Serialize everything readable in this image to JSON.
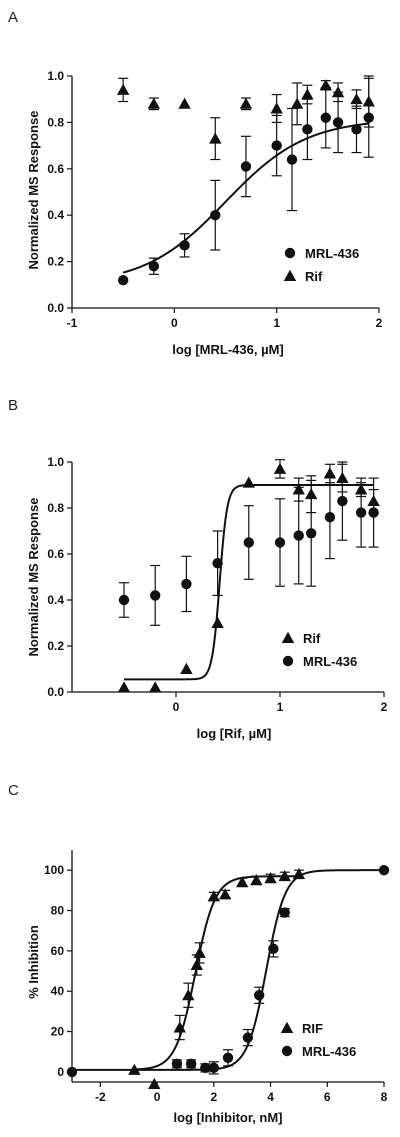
{
  "chart_data": [
    {
      "type": "scatter",
      "panel": "A",
      "xlabel": "log [MRL-436, µM]",
      "ylabel": "Normalized MS Response",
      "xlim": [
        -1,
        2
      ],
      "ylim": [
        0,
        1.0
      ],
      "xticks": [
        "-1",
        "0",
        "1",
        "2"
      ],
      "yticks": [
        "0.0",
        "0.2",
        "0.4",
        "0.6",
        "0.8",
        "1.0"
      ],
      "legend_position": "bottom-right",
      "series": [
        {
          "name": "MRL-436",
          "marker": "circle",
          "points": [
            {
              "x": -0.5,
              "y": 0.12,
              "err": 0.0
            },
            {
              "x": -0.2,
              "y": 0.18,
              "err": 0.035
            },
            {
              "x": 0.1,
              "y": 0.27,
              "err": 0.05
            },
            {
              "x": 0.4,
              "y": 0.4,
              "err": 0.15
            },
            {
              "x": 0.7,
              "y": 0.61,
              "err": 0.13
            },
            {
              "x": 1.0,
              "y": 0.7,
              "err": 0.13
            },
            {
              "x": 1.15,
              "y": 0.64,
              "err": 0.22
            },
            {
              "x": 1.3,
              "y": 0.77,
              "err": 0.13
            },
            {
              "x": 1.48,
              "y": 0.82,
              "err": 0.13
            },
            {
              "x": 1.6,
              "y": 0.8,
              "err": 0.13
            },
            {
              "x": 1.78,
              "y": 0.77,
              "err": 0.1
            },
            {
              "x": 1.9,
              "y": 0.82,
              "err": 0.17
            }
          ],
          "fit": {
            "bottom": 0.1,
            "top": 0.815,
            "logEC50": 0.5,
            "hill": 1.1
          }
        },
        {
          "name": "Rif",
          "marker": "triangle",
          "points": [
            {
              "x": -0.5,
              "y": 0.94,
              "err": 0.05
            },
            {
              "x": -0.2,
              "y": 0.88,
              "err": 0.025
            },
            {
              "x": 0.1,
              "y": 0.88,
              "err": 0.0
            },
            {
              "x": 0.4,
              "y": 0.73,
              "err": 0.09
            },
            {
              "x": 0.7,
              "y": 0.88,
              "err": 0.025
            },
            {
              "x": 1.0,
              "y": 0.86,
              "err": 0.06
            },
            {
              "x": 1.2,
              "y": 0.88,
              "err": 0.09
            },
            {
              "x": 1.3,
              "y": 0.92,
              "err": 0.04
            },
            {
              "x": 1.48,
              "y": 0.96,
              "err": 0.02
            },
            {
              "x": 1.6,
              "y": 0.93,
              "err": 0.04
            },
            {
              "x": 1.78,
              "y": 0.9,
              "err": 0.04
            },
            {
              "x": 1.9,
              "y": 0.89,
              "err": 0.11
            }
          ]
        }
      ]
    },
    {
      "type": "scatter",
      "panel": "B",
      "xlabel": "log [Rif, µM]",
      "ylabel": "Normalized MS Response",
      "xlim": [
        -1,
        2
      ],
      "ylim": [
        0,
        1.0
      ],
      "xticks": [
        "0",
        "1",
        "2"
      ],
      "yticks": [
        "0.0",
        "0.2",
        "0.4",
        "0.6",
        "0.8",
        "1.0"
      ],
      "legend_position": "bottom-right",
      "series": [
        {
          "name": "Rif",
          "marker": "triangle",
          "points": [
            {
              "x": -0.5,
              "y": 0.02,
              "err": 0.0
            },
            {
              "x": -0.2,
              "y": 0.02,
              "err": 0.0
            },
            {
              "x": 0.1,
              "y": 0.1,
              "err": 0.0
            },
            {
              "x": 0.4,
              "y": 0.3,
              "err": 0.0
            },
            {
              "x": 0.7,
              "y": 0.91,
              "err": 0.0
            },
            {
              "x": 1.0,
              "y": 0.97,
              "err": 0.04
            },
            {
              "x": 1.18,
              "y": 0.88,
              "err": 0.05
            },
            {
              "x": 1.3,
              "y": 0.86,
              "err": 0.08
            },
            {
              "x": 1.48,
              "y": 0.95,
              "err": 0.04
            },
            {
              "x": 1.6,
              "y": 0.93,
              "err": 0.06
            },
            {
              "x": 1.78,
              "y": 0.88,
              "err": 0.03
            },
            {
              "x": 1.9,
              "y": 0.83,
              "err": 0.05
            }
          ],
          "fit": {
            "bottom": 0.055,
            "top": 0.9,
            "logEC50": 0.42,
            "hill": 12
          }
        },
        {
          "name": "MRL-436",
          "marker": "circle",
          "points": [
            {
              "x": -0.5,
              "y": 0.4,
              "err": 0.075
            },
            {
              "x": -0.2,
              "y": 0.42,
              "err": 0.13
            },
            {
              "x": 0.1,
              "y": 0.47,
              "err": 0.12
            },
            {
              "x": 0.4,
              "y": 0.56,
              "err": 0.14
            },
            {
              "x": 0.7,
              "y": 0.65,
              "err": 0.16
            },
            {
              "x": 1.0,
              "y": 0.65,
              "err": 0.19
            },
            {
              "x": 1.18,
              "y": 0.68,
              "err": 0.21
            },
            {
              "x": 1.3,
              "y": 0.69,
              "err": 0.23
            },
            {
              "x": 1.48,
              "y": 0.76,
              "err": 0.18
            },
            {
              "x": 1.6,
              "y": 0.83,
              "err": 0.17
            },
            {
              "x": 1.78,
              "y": 0.78,
              "err": 0.15
            },
            {
              "x": 1.9,
              "y": 0.78,
              "err": 0.15
            }
          ]
        }
      ]
    },
    {
      "type": "scatter",
      "panel": "C",
      "xlabel": "log [Inhibitor, nM]",
      "ylabel": "% Inhibition",
      "xlim": [
        -3,
        8
      ],
      "ylim": [
        -5,
        110
      ],
      "xticks": [
        "-2",
        "0",
        "2",
        "4",
        "6",
        "8"
      ],
      "yticks": [
        "0",
        "20",
        "40",
        "60",
        "80",
        "100"
      ],
      "legend_position": "bottom-right",
      "series": [
        {
          "name": "RIF",
          "marker": "triangle",
          "points": [
            {
              "x": -0.8,
              "y": 1,
              "err": 0
            },
            {
              "x": -0.1,
              "y": -6,
              "err": 0
            },
            {
              "x": 0.8,
              "y": 22,
              "err": 6
            },
            {
              "x": 1.1,
              "y": 38,
              "err": 6
            },
            {
              "x": 1.4,
              "y": 53,
              "err": 5
            },
            {
              "x": 1.5,
              "y": 59,
              "err": 5
            },
            {
              "x": 2.0,
              "y": 87,
              "err": 2
            },
            {
              "x": 2.4,
              "y": 88,
              "err": 2
            },
            {
              "x": 3.0,
              "y": 94,
              "err": 2
            },
            {
              "x": 3.5,
              "y": 95,
              "err": 2
            },
            {
              "x": 4.0,
              "y": 96,
              "err": 2
            },
            {
              "x": 4.5,
              "y": 97,
              "err": 2
            },
            {
              "x": 5.0,
              "y": 98,
              "err": 2
            }
          ],
          "fit": {
            "bottom": 1,
            "top": 97,
            "logEC50": 1.35,
            "hill": 1.25
          }
        },
        {
          "name": "MRL-436",
          "marker": "circle",
          "points": [
            {
              "x": -3.0,
              "y": 0,
              "err": 0
            },
            {
              "x": 0.7,
              "y": 4,
              "err": 2
            },
            {
              "x": 1.2,
              "y": 4,
              "err": 2
            },
            {
              "x": 1.7,
              "y": 2,
              "err": 2
            },
            {
              "x": 2.0,
              "y": 2,
              "err": 3
            },
            {
              "x": 2.5,
              "y": 7,
              "err": 4
            },
            {
              "x": 3.2,
              "y": 17,
              "err": 4
            },
            {
              "x": 3.6,
              "y": 38,
              "err": 4
            },
            {
              "x": 4.1,
              "y": 61,
              "err": 4
            },
            {
              "x": 4.5,
              "y": 79,
              "err": 2
            },
            {
              "x": 8.0,
              "y": 100,
              "err": 0
            }
          ],
          "fit": {
            "bottom": 1,
            "top": 100,
            "logEC50": 3.85,
            "hill": 1.3
          }
        }
      ]
    }
  ],
  "panels": [
    {
      "letter": "A",
      "xlabel": "log [MRL-436, µM]",
      "ylabel": "Normalized MS Response",
      "legend": [
        {
          "label": "MRL-436",
          "marker": "circle"
        },
        {
          "label": "Rif",
          "marker": "triangle"
        }
      ]
    },
    {
      "letter": "B",
      "xlabel": "log [Rif, µM]",
      "ylabel": "Normalized MS Response",
      "legend": [
        {
          "label": "Rif",
          "marker": "triangle"
        },
        {
          "label": "MRL-436",
          "marker": "circle"
        }
      ]
    },
    {
      "letter": "C",
      "xlabel": "log [Inhibitor, nM]",
      "ylabel": "% Inhibition",
      "legend": [
        {
          "label": "RIF",
          "marker": "triangle"
        },
        {
          "label": "MRL-436",
          "marker": "circle"
        }
      ]
    }
  ],
  "colors": {
    "ink": "#111111",
    "background": "#ffffff"
  }
}
